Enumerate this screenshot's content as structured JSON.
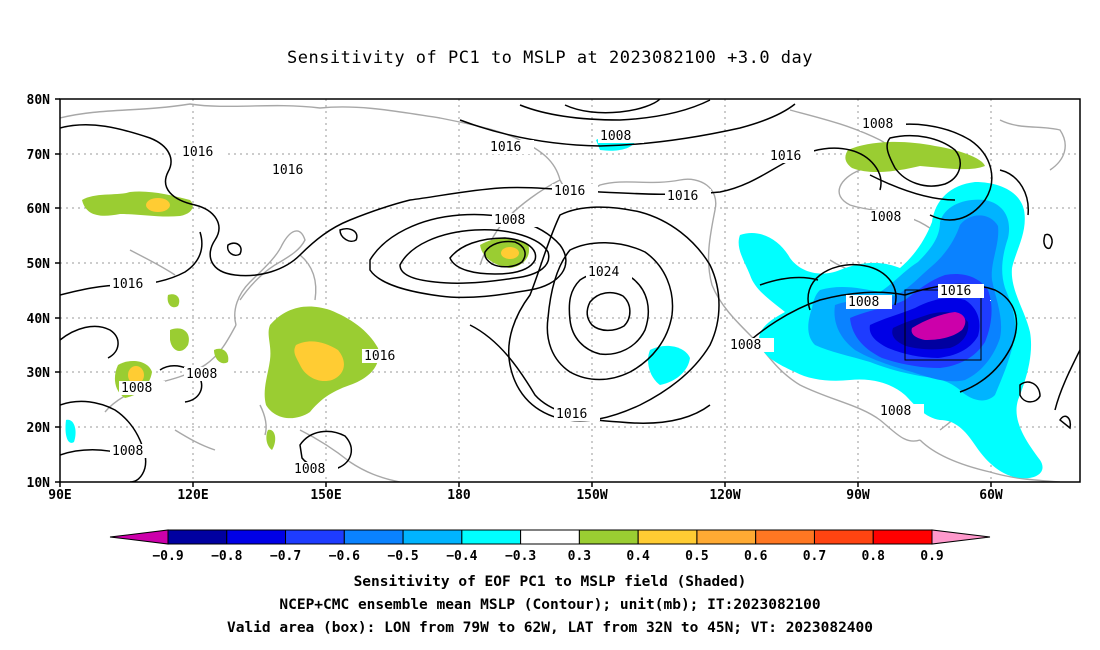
{
  "title": "Sensitivity of PC1 to MSLP at 2023082100 +3.0 day",
  "lat_labels": [
    "80N",
    "70N",
    "60N",
    "50N",
    "40N",
    "30N",
    "20N",
    "10N"
  ],
  "lon_labels": [
    "90E",
    "120E",
    "150E",
    "180",
    "150W",
    "120W",
    "90W",
    "60W"
  ],
  "contour_labels": [
    "1008",
    "1016",
    "1016",
    "1008",
    "1016",
    "1016",
    "1008",
    "1016",
    "1008",
    "1024",
    "1016",
    "1008",
    "1008",
    "1016",
    "1016",
    "1008",
    "1016",
    "1008",
    "1008",
    "1008",
    "1008",
    "1016",
    "1008"
  ],
  "colorbar": {
    "labels": [
      "-0.9",
      "-0.8",
      "-0.7",
      "-0.6",
      "-0.5",
      "-0.4",
      "-0.3",
      "0.3",
      "0.4",
      "0.5",
      "0.6",
      "0.7",
      "0.8",
      "0.9"
    ],
    "colors": [
      "#cc00aa",
      "#0000a0",
      "#0000e6",
      "#1e3cff",
      "#0a82ff",
      "#00b4ff",
      "#00ffff",
      "#ffffff",
      "#9acd32",
      "#ffcc33",
      "#ffaa33",
      "#ff7722",
      "#ff4411",
      "#ff0000",
      "#ff99cc"
    ]
  },
  "captions": {
    "line1": "Sensitivity of EOF PC1 to MSLP field (Shaded)",
    "line2": "NCEP+CMC ensemble mean MSLP (Contour); unit(mb); IT:2023082100",
    "line3": "Valid area (box): LON from 79W to 62W, LAT from 32N to 45N; VT: 2023082400"
  }
}
